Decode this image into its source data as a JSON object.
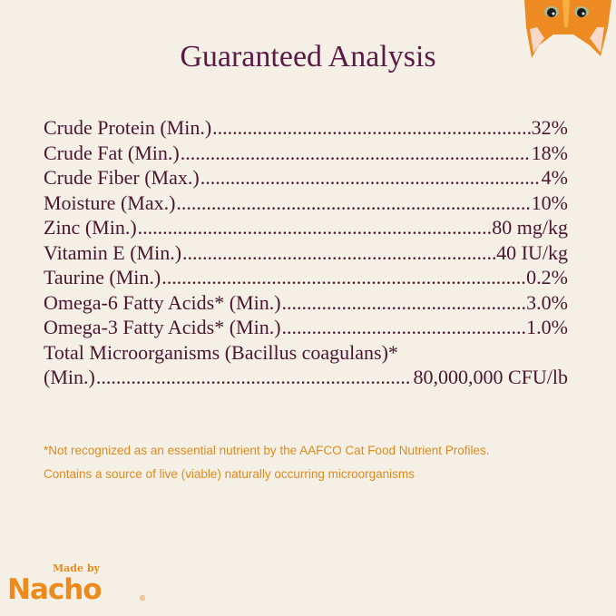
{
  "title": "Guaranteed Analysis",
  "rows": [
    {
      "label": "Crude Protein (Min.)",
      "value": "32%"
    },
    {
      "label": "Crude Fat (Min.)",
      "value": "18%"
    },
    {
      "label": "Crude Fiber (Max.)",
      "value": "4%"
    },
    {
      "label": "Moisture (Max.)",
      "value": "10%"
    },
    {
      "label": "Zinc (Min.)",
      "value": "80 mg/kg"
    },
    {
      "label": "Vitamin E (Min.)",
      "value": "40 IU/kg"
    },
    {
      "label": "Taurine (Min.)",
      "value": "0.2%"
    },
    {
      "label": "Omega-6 Fatty Acids* (Min.)",
      "value": "3.0%"
    },
    {
      "label": "Omega-3 Fatty Acids* (Min.)",
      "value": "1.0%"
    },
    {
      "label": "Total Microorganisms (Bacillus coagulans)*",
      "label2": "(Min.)",
      "value": "80,000,000 CFU/lb"
    }
  ],
  "notes": [
    "*Not recognized as an essential nutrient by the AAFCO Cat Food Nutrient Profiles.",
    "Contains a source of live (viable) naturally occurring microorganisms"
  ],
  "logo": {
    "made_by": "Made by",
    "brand": "Nacho",
    "mark": "®"
  },
  "colors": {
    "background": "#f5f0e6",
    "title": "#5a1a45",
    "text": "#4a1530",
    "accent": "#e08a1e"
  },
  "icons": {
    "corner": "cat-face-illustration"
  }
}
